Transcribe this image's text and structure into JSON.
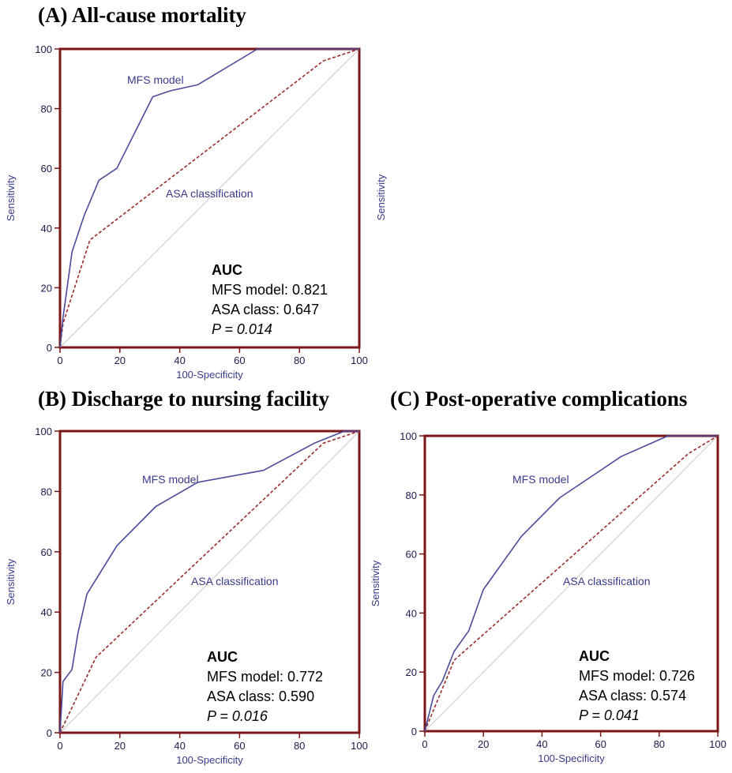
{
  "colors": {
    "frame": "#7a1616",
    "mfs_line": "#4a4a9a",
    "asa_line": "#9b2a2a",
    "diagonal": "#c8c8c8"
  },
  "titles": {
    "a": "(A) All-cause mortality",
    "b": "(B) Discharge to nursing facility",
    "c": "(C) Post-operative complications"
  },
  "orphan_ylabel": "Sensitivity",
  "chart_data": [
    {
      "id": "A",
      "type": "line",
      "title": "(A) All-cause mortality",
      "xlabel": "100-Specificity",
      "ylabel": "Sensitivity",
      "xlim": [
        0,
        100
      ],
      "ylim": [
        0,
        100
      ],
      "xticks": [
        0,
        20,
        40,
        60,
        80,
        100
      ],
      "yticks": [
        0,
        20,
        40,
        60,
        80,
        100
      ],
      "series": [
        {
          "name": "MFS model",
          "style": "solid",
          "x": [
            0,
            1,
            4,
            8,
            13,
            19,
            31,
            37,
            46,
            66,
            100
          ],
          "y": [
            0,
            10,
            32,
            44,
            56,
            60,
            84,
            86,
            88,
            100,
            100
          ]
        },
        {
          "name": "ASA classification",
          "style": "dashed",
          "x": [
            0,
            1,
            10,
            88,
            100
          ],
          "y": [
            0,
            8,
            36,
            96,
            100
          ]
        }
      ],
      "reference_line": true,
      "auc": {
        "heading": "AUC",
        "mfs": "MFS model: 0.821",
        "asa": "ASA class: 0.647",
        "p": "P = 0.014"
      }
    },
    {
      "id": "B",
      "type": "line",
      "title": "(B) Discharge to nursing facility",
      "xlabel": "100-Specificity",
      "ylabel": "Sensitivity",
      "xlim": [
        0,
        100
      ],
      "ylim": [
        0,
        100
      ],
      "xticks": [
        0,
        20,
        40,
        60,
        80,
        100
      ],
      "yticks": [
        0,
        20,
        40,
        60,
        80,
        100
      ],
      "series": [
        {
          "name": "MFS model",
          "style": "solid",
          "x": [
            0,
            1,
            4,
            6,
            9,
            19,
            32,
            46,
            68,
            85,
            95,
            100
          ],
          "y": [
            0,
            17,
            21,
            33,
            46,
            62,
            75,
            83,
            87,
            96,
            100,
            100
          ]
        },
        {
          "name": "ASA classification",
          "style": "dashed",
          "x": [
            0,
            12,
            88,
            100
          ],
          "y": [
            0,
            25,
            96,
            100
          ]
        }
      ],
      "reference_line": true,
      "auc": {
        "heading": "AUC",
        "mfs": "MFS model: 0.772",
        "asa": "ASA class: 0.590",
        "p": "P = 0.016"
      }
    },
    {
      "id": "C",
      "type": "line",
      "title": "(C) Post-operative complications",
      "xlabel": "100-Specificity",
      "ylabel": "Sensitivity",
      "xlim": [
        0,
        100
      ],
      "ylim": [
        0,
        100
      ],
      "xticks": [
        0,
        20,
        40,
        60,
        80,
        100
      ],
      "yticks": [
        0,
        20,
        40,
        60,
        80,
        100
      ],
      "series": [
        {
          "name": "MFS model",
          "style": "solid",
          "x": [
            0,
            3,
            6,
            10,
            15,
            20,
            33,
            46,
            67,
            83,
            100
          ],
          "y": [
            0,
            12,
            17,
            27,
            34,
            48,
            66,
            79,
            93,
            100,
            100
          ]
        },
        {
          "name": "ASA classification",
          "style": "dashed",
          "x": [
            0,
            10,
            90,
            100
          ],
          "y": [
            0,
            24,
            94,
            100
          ]
        }
      ],
      "reference_line": true,
      "auc": {
        "heading": "AUC",
        "mfs": "MFS model: 0.726",
        "asa": "ASA class: 0.574",
        "p": "P = 0.041"
      }
    }
  ]
}
